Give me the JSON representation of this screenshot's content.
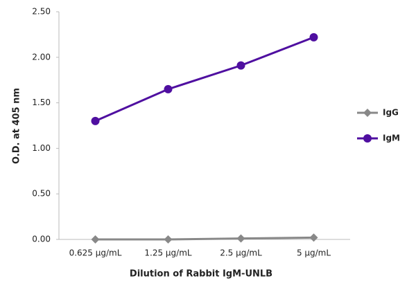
{
  "chart_data": {
    "type": "line",
    "x_label": "Dilution of Rabbit IgM-UNLB",
    "y_label": "O.D. at 405 nm",
    "categories": [
      "0.625 µg/mL",
      "1.25 µg/mL",
      "2.5 µg/mL",
      "5 µg/mL"
    ],
    "series": [
      {
        "name": "IgG",
        "color": "#888888",
        "marker": "diamond",
        "values": [
          0.0,
          0.0,
          0.01,
          0.02
        ]
      },
      {
        "name": "IgM",
        "color": "#4f0fa0",
        "marker": "circle",
        "values": [
          1.3,
          1.65,
          1.91,
          2.22
        ]
      }
    ],
    "ylim": [
      0,
      2.5
    ],
    "yticks": [
      {
        "value": 0,
        "label": "0.00"
      },
      {
        "value": 0.5,
        "label": "0.50"
      },
      {
        "value": 1,
        "label": "1.00"
      },
      {
        "value": 1.5,
        "label": "1.50"
      },
      {
        "value": 2,
        "label": "2.00"
      },
      {
        "value": 2.5,
        "label": "2.50"
      }
    ],
    "grid": false,
    "legend": "right"
  }
}
